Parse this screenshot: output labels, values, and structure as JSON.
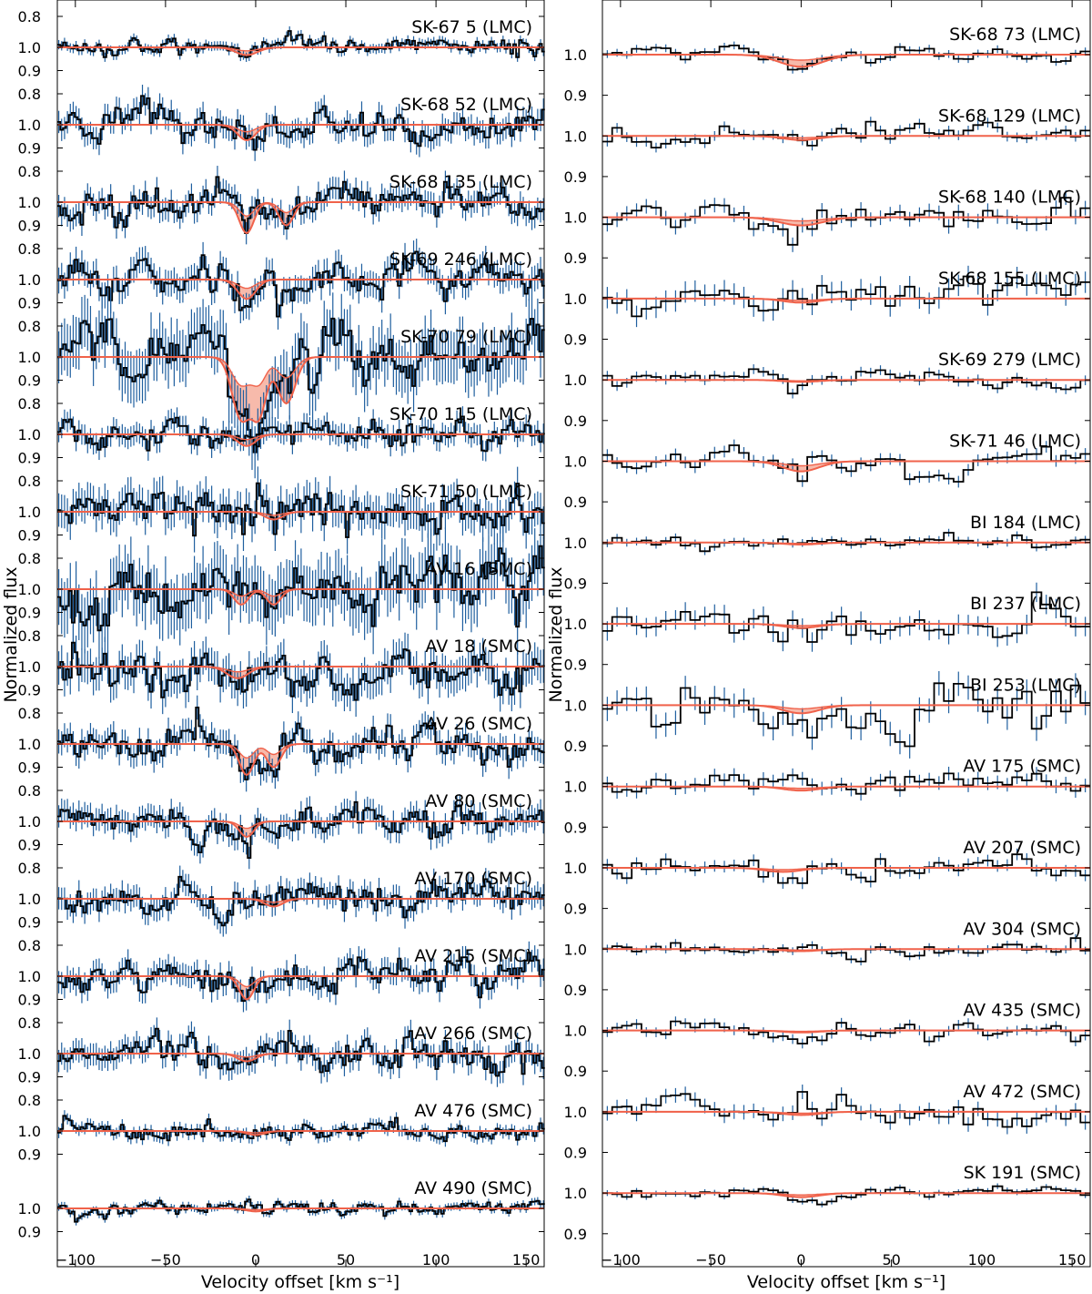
{
  "figure": {
    "ylabel": "Normalized flux",
    "xlabel": "Velocity offset [km s⁻¹]",
    "colors": {
      "data": "#000000",
      "error": "#1f5f9f",
      "model": "#f0624b",
      "model_fill": "#f4a38f"
    }
  },
  "chart_data": [
    {
      "type": "line",
      "xlabel": "Velocity offset [km s⁻¹]",
      "ylabel": "Normalized flux",
      "xlim": [
        -110,
        160
      ],
      "xticks": [
        -100,
        -50,
        0,
        50,
        100,
        150
      ],
      "panel_ytick_labels": [
        "1.0",
        "0.9",
        "0.8"
      ],
      "bottom_ytick_label": "0.9",
      "panels": [
        {
          "name": "SK-67 5 (LMC)",
          "noise": 0.005,
          "rough": 0.6,
          "absorb": [
            [
              -5,
              6,
              0.01
            ]
          ]
        },
        {
          "name": "SK-68 52 (LMC)",
          "noise": 0.012,
          "rough": 0.7,
          "absorb": [
            [
              -5,
              5,
              0.02
            ]
          ]
        },
        {
          "name": "SK-68 135 (LMC)",
          "noise": 0.012,
          "rough": 0.7,
          "absorb": [
            [
              -5,
              4,
              0.04
            ],
            [
              17,
              4,
              0.03
            ]
          ]
        },
        {
          "name": "SK-69 246 (LMC)",
          "noise": 0.014,
          "rough": 0.7,
          "absorb": [
            [
              -5,
              5,
              0.025
            ]
          ]
        },
        {
          "name": "SK-70 79 (LMC)",
          "noise": 0.028,
          "rough": 0.8,
          "absorb": [
            [
              -8,
              5,
              0.08
            ],
            [
              2,
              4,
              0.07
            ],
            [
              17,
              5,
              0.06
            ]
          ]
        },
        {
          "name": "SK-70 115 (LMC)",
          "noise": 0.011,
          "rough": 0.7,
          "absorb": [
            [
              -5,
              5,
              0.015
            ]
          ]
        },
        {
          "name": "SK-71 50 (LMC)",
          "noise": 0.018,
          "rough": 0.75,
          "absorb": [
            [
              10,
              5,
              0.01
            ]
          ]
        },
        {
          "name": "AV 16 (SMC)",
          "noise": 0.03,
          "rough": 0.8,
          "absorb": [
            [
              -8,
              4,
              0.02
            ],
            [
              10,
              4,
              0.02
            ]
          ]
        },
        {
          "name": "AV 18 (SMC)",
          "noise": 0.018,
          "rough": 0.75,
          "absorb": [
            [
              -10,
              6,
              0.015
            ]
          ]
        },
        {
          "name": "AV 26 (SMC)",
          "noise": 0.013,
          "rough": 0.7,
          "absorb": [
            [
              -5,
              4,
              0.04
            ],
            [
              10,
              4,
              0.03
            ]
          ]
        },
        {
          "name": "AV 80 (SMC)",
          "noise": 0.012,
          "rough": 0.7,
          "absorb": [
            [
              -5,
              4,
              0.02
            ]
          ]
        },
        {
          "name": "AV 170 (SMC)",
          "noise": 0.012,
          "rough": 0.7,
          "absorb": [
            [
              10,
              5,
              0.01
            ]
          ]
        },
        {
          "name": "AV 215 (SMC)",
          "noise": 0.012,
          "rough": 0.7,
          "absorb": [
            [
              -5,
              4,
              0.03
            ]
          ]
        },
        {
          "name": "AV 266 (SMC)",
          "noise": 0.012,
          "rough": 0.7,
          "absorb": [
            [
              -5,
              5,
              0.01
            ]
          ]
        },
        {
          "name": "AV 476 (SMC)",
          "noise": 0.006,
          "rough": 0.6,
          "absorb": [
            [
              0,
              5,
              0.005
            ]
          ]
        },
        {
          "name": "AV 490 (SMC)",
          "noise": 0.004,
          "rough": 0.6,
          "absorb": [
            [
              0,
              5,
              0.004
            ]
          ]
        }
      ]
    },
    {
      "type": "line",
      "xlabel": "Velocity offset [km s⁻¹]",
      "ylabel": "Normalized flux",
      "xlim": [
        -110,
        160
      ],
      "xticks": [
        -100,
        -50,
        0,
        50,
        100,
        150
      ],
      "panel_ytick_labels": [
        "1.0",
        "0.9"
      ],
      "bottom_ytick_label": "0.9",
      "panels": [
        {
          "name": "SK-68 73 (LMC)",
          "noise": 0.008,
          "rough": 0.5,
          "absorb": [
            [
              0,
              12,
              0.03
            ]
          ]
        },
        {
          "name": "SK-68 129 (LMC)",
          "noise": 0.01,
          "rough": 0.5,
          "absorb": [
            [
              0,
              10,
              0.01
            ]
          ]
        },
        {
          "name": "SK-68 140 (LMC)",
          "noise": 0.015,
          "rough": 0.55,
          "absorb": [
            [
              0,
              12,
              0.02
            ]
          ]
        },
        {
          "name": "SK-68 155 (LMC)",
          "noise": 0.022,
          "rough": 0.55,
          "absorb": [
            [
              0,
              10,
              0.01
            ]
          ]
        },
        {
          "name": "SK-69 279 (LMC)",
          "noise": 0.01,
          "rough": 0.5,
          "absorb": [
            [
              0,
              10,
              0.005
            ]
          ]
        },
        {
          "name": "SK-71 46 (LMC)",
          "noise": 0.012,
          "rough": 0.5,
          "absorb": [
            [
              0,
              10,
              0.025
            ]
          ]
        },
        {
          "name": "BI 184 (LMC)",
          "noise": 0.008,
          "rough": 0.5,
          "absorb": [
            [
              0,
              10,
              0.005
            ]
          ]
        },
        {
          "name": "BI 237 (LMC)",
          "noise": 0.02,
          "rough": 0.55,
          "absorb": [
            [
              0,
              10,
              0.01
            ]
          ]
        },
        {
          "name": "BI 253 (LMC)",
          "noise": 0.025,
          "rough": 0.55,
          "absorb": [
            [
              0,
              10,
              0.02
            ]
          ]
        },
        {
          "name": "AV 175 (SMC)",
          "noise": 0.014,
          "rough": 0.55,
          "absorb": [
            [
              0,
              10,
              0.01
            ]
          ]
        },
        {
          "name": "AV 207 (SMC)",
          "noise": 0.012,
          "rough": 0.5,
          "absorb": [
            [
              -10,
              10,
              0.01
            ]
          ]
        },
        {
          "name": "AV 304 (SMC)",
          "noise": 0.008,
          "rough": 0.5,
          "absorb": [
            [
              0,
              10,
              0.005
            ]
          ]
        },
        {
          "name": "AV 435 (SMC)",
          "noise": 0.01,
          "rough": 0.5,
          "absorb": [
            [
              0,
              10,
              0.005
            ]
          ]
        },
        {
          "name": "AV 472 (SMC)",
          "noise": 0.015,
          "rough": 0.55,
          "absorb": [
            [
              0,
              10,
              0.008
            ]
          ]
        },
        {
          "name": "SK 191 (SMC)",
          "noise": 0.006,
          "rough": 0.5,
          "absorb": [
            [
              0,
              10,
              0.01
            ]
          ]
        }
      ]
    }
  ]
}
